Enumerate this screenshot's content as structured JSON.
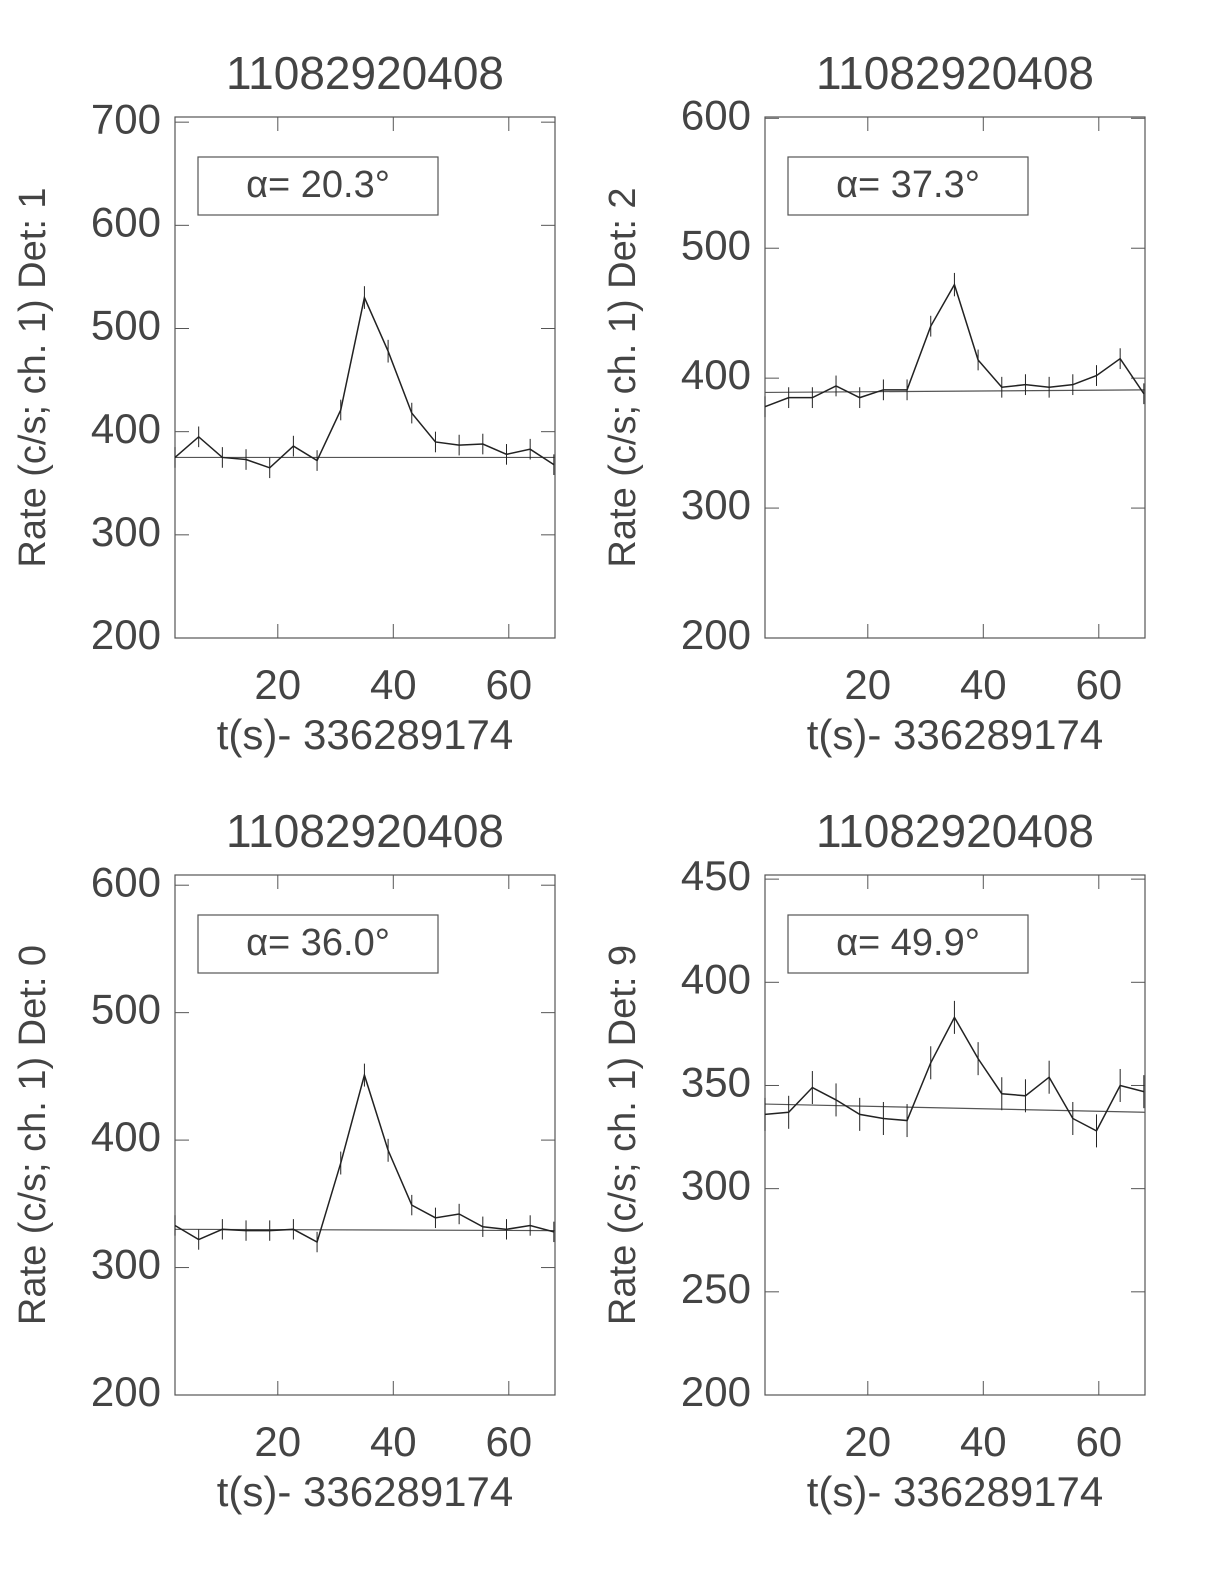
{
  "chart_data": [
    {
      "type": "line",
      "title": "11082920408",
      "y_label": "Rate (c/s; ch. 1) Det: 1",
      "x_label": "t(s)- 336289174",
      "annotation": "α= 20.3°",
      "x": [
        2.2,
        6.3,
        10.4,
        14.5,
        18.6,
        22.7,
        26.8,
        30.9,
        35.0,
        39.1,
        43.2,
        47.3,
        51.4,
        55.5,
        59.6,
        63.7,
        67.8
      ],
      "values": [
        375,
        395,
        375,
        373,
        365,
        386,
        372,
        421,
        530,
        478,
        418,
        390,
        387,
        388,
        378,
        383,
        368
      ],
      "errors": [
        10,
        10,
        10,
        10,
        10,
        10,
        10,
        10,
        11,
        11,
        10,
        10,
        10,
        10,
        10,
        10,
        10
      ],
      "fit": [
        375,
        375
      ],
      "color": "#222",
      "xlim": [
        2.2,
        68
      ],
      "ylim": [
        200,
        705
      ],
      "xticks": [
        20,
        40,
        60
      ],
      "yticks": [
        200,
        300,
        400,
        500,
        600,
        700
      ]
    },
    {
      "type": "line",
      "title": "11082920408",
      "y_label": "Rate (c/s; ch. 1) Det: 2",
      "x_label": "t(s)- 336289174",
      "annotation": "α= 37.3°",
      "x": [
        2.2,
        6.3,
        10.4,
        14.5,
        18.6,
        22.7,
        26.8,
        30.9,
        35.0,
        39.1,
        43.2,
        47.3,
        51.4,
        55.5,
        59.6,
        63.7,
        67.8
      ],
      "values": [
        378,
        385,
        385,
        394,
        385,
        391,
        391,
        440,
        472,
        414,
        393,
        395,
        393,
        395,
        402,
        415,
        388
      ],
      "errors": [
        8,
        8,
        8,
        8,
        8,
        8,
        8,
        8,
        9,
        8,
        8,
        8,
        8,
        8,
        8,
        8,
        8
      ],
      "fit": [
        389,
        391
      ],
      "color": "#222",
      "xlim": [
        2.2,
        68
      ],
      "ylim": [
        200,
        601
      ],
      "xticks": [
        20,
        40,
        60
      ],
      "yticks": [
        200,
        300,
        400,
        500,
        600
      ]
    },
    {
      "type": "line",
      "title": "11082920408",
      "y_label": "Rate (c/s; ch. 1) Det: 0",
      "x_label": "t(s)- 336289174",
      "annotation": "α= 36.0°",
      "x": [
        2.2,
        6.3,
        10.4,
        14.5,
        18.6,
        22.7,
        26.8,
        30.9,
        35.0,
        39.1,
        43.2,
        47.3,
        51.4,
        55.5,
        59.6,
        63.7,
        67.8
      ],
      "values": [
        333,
        322,
        330,
        329,
        329,
        330,
        320,
        382,
        451,
        392,
        349,
        339,
        342,
        332,
        330,
        333,
        328
      ],
      "errors": [
        8,
        8,
        8,
        8,
        8,
        8,
        8,
        9,
        9,
        9,
        8,
        8,
        8,
        8,
        8,
        8,
        8
      ],
      "fit": [
        330,
        329
      ],
      "color": "#222",
      "xlim": [
        2.2,
        68
      ],
      "ylim": [
        200,
        608
      ],
      "xticks": [
        20,
        40,
        60
      ],
      "yticks": [
        200,
        300,
        400,
        500,
        600
      ]
    },
    {
      "type": "line",
      "title": "11082920408",
      "y_label": "Rate (c/s; ch. 1) Det: 9",
      "x_label": "t(s)- 336289174",
      "annotation": "α= 49.9°",
      "x": [
        2.2,
        6.3,
        10.4,
        14.5,
        18.6,
        22.7,
        26.8,
        30.9,
        35.0,
        39.1,
        43.2,
        47.3,
        51.4,
        55.5,
        59.6,
        63.7,
        67.8
      ],
      "values": [
        336,
        337,
        349,
        343,
        336,
        334,
        333,
        361,
        383,
        363,
        346,
        345,
        354,
        334,
        328,
        350,
        347
      ],
      "errors": [
        8,
        8,
        8,
        8,
        8,
        8,
        8,
        8,
        8,
        8,
        8,
        8,
        8,
        8,
        8,
        8,
        8
      ],
      "fit": [
        341,
        337
      ],
      "color": "#222",
      "xlim": [
        2.2,
        68
      ],
      "ylim": [
        200,
        452
      ],
      "xticks": [
        20,
        40,
        60
      ],
      "yticks": [
        200,
        250,
        300,
        350,
        400,
        450
      ]
    }
  ]
}
